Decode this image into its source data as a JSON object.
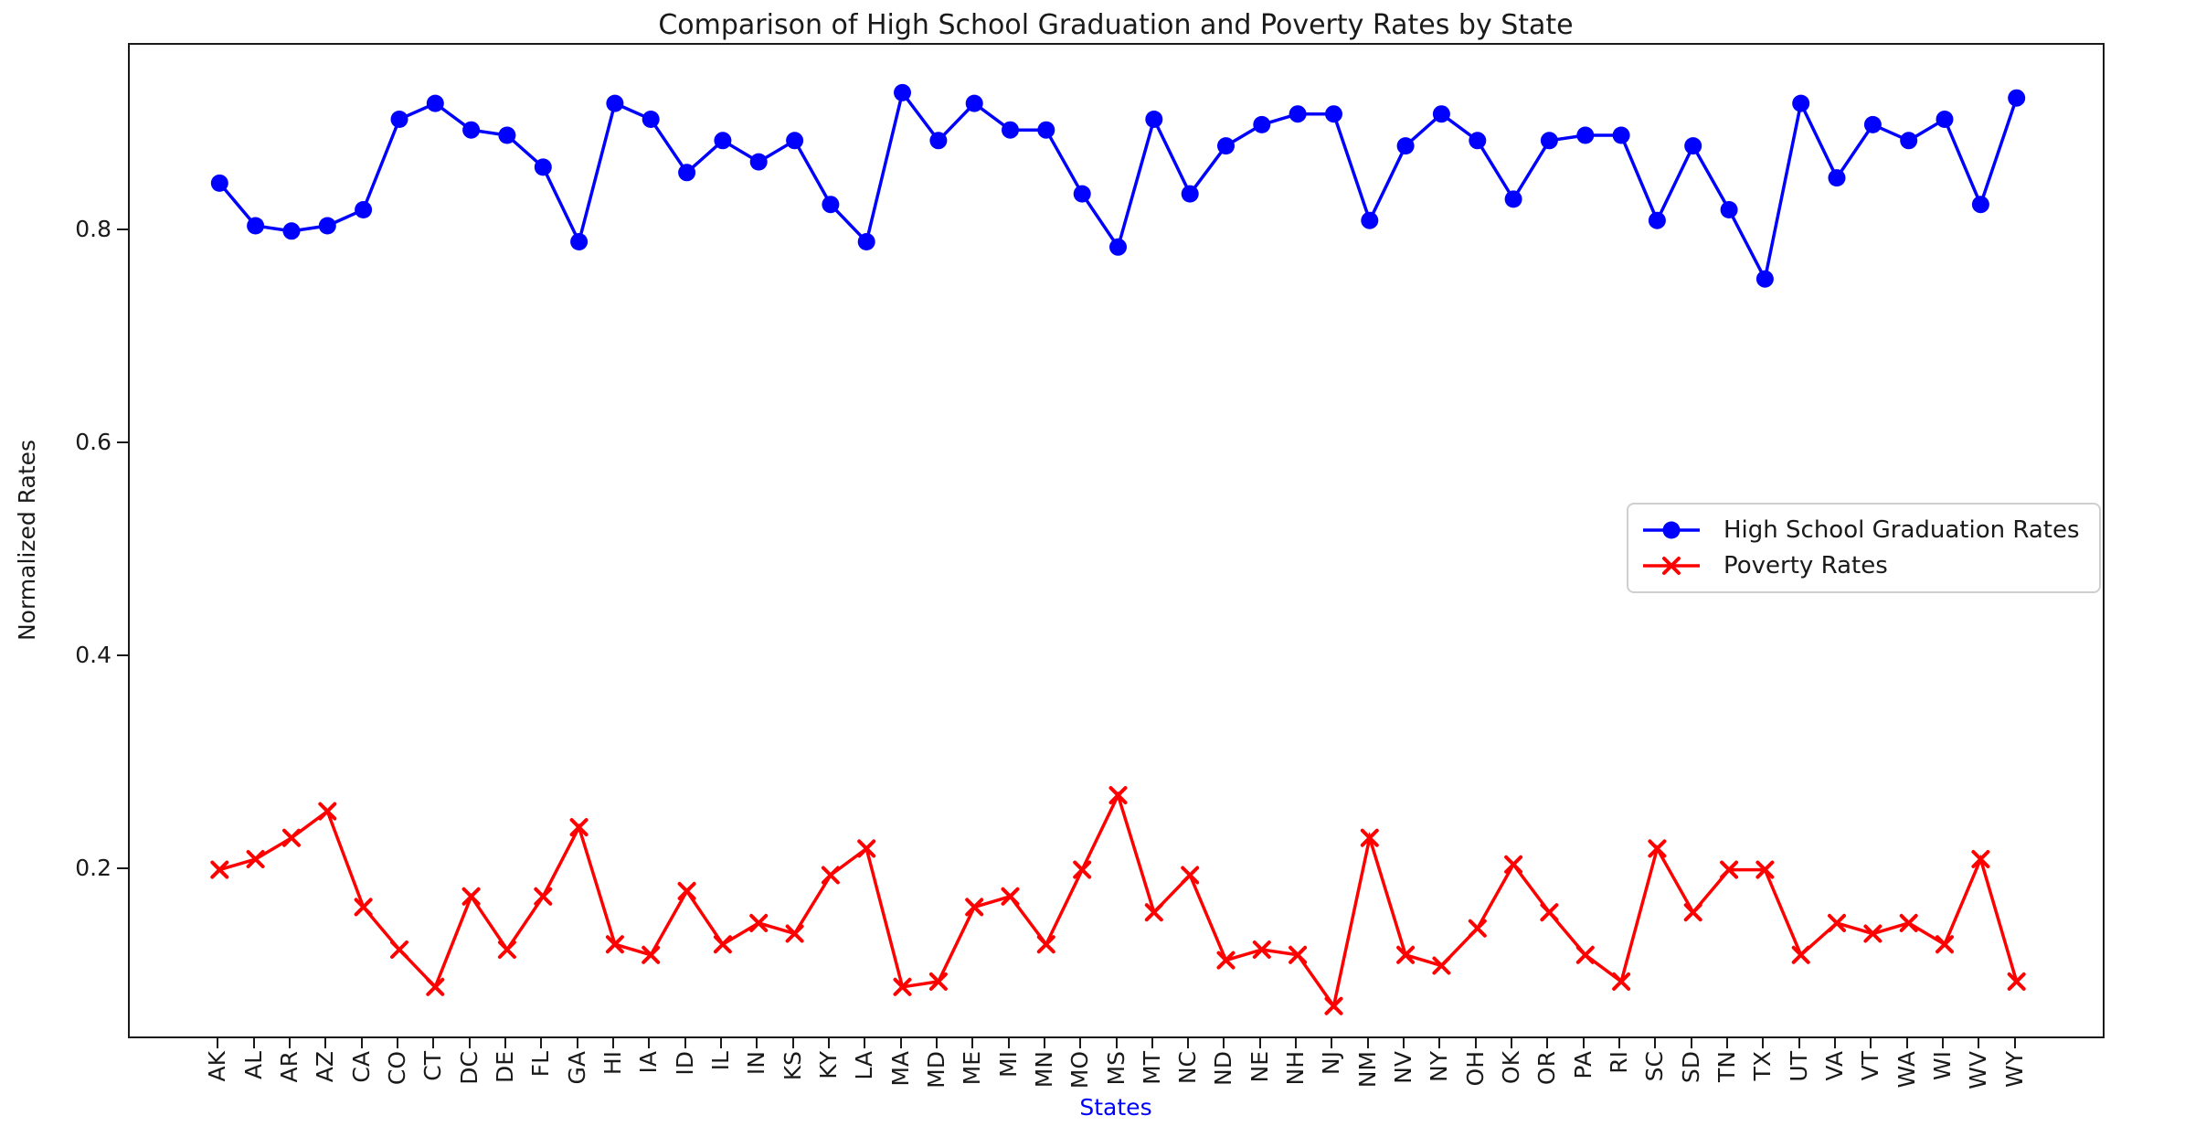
{
  "chart_data": {
    "type": "line",
    "title": "Comparison of High School Graduation and Poverty Rates by State",
    "xlabel": "States",
    "ylabel": "Normalized Rates",
    "xlabel_color": "#0000ff",
    "grid": false,
    "legend_position": "center right",
    "yticks": [
      0.2,
      0.4,
      0.6,
      0.8
    ],
    "ylim": [
      0.04,
      0.975
    ],
    "categories": [
      "AK",
      "AL",
      "AR",
      "AZ",
      "CA",
      "CO",
      "CT",
      "DC",
      "DE",
      "FL",
      "GA",
      "HI",
      "IA",
      "ID",
      "IL",
      "IN",
      "KS",
      "KY",
      "LA",
      "MA",
      "MD",
      "ME",
      "MI",
      "MN",
      "MO",
      "MS",
      "MT",
      "NC",
      "ND",
      "NE",
      "NH",
      "NJ",
      "NM",
      "NV",
      "NY",
      "OH",
      "OK",
      "OR",
      "PA",
      "RI",
      "SC",
      "SD",
      "TN",
      "TX",
      "UT",
      "VA",
      "VT",
      "WA",
      "WI",
      "WV",
      "WY"
    ],
    "series": [
      {
        "name": "High School Graduation Rates",
        "color": "#0000ff",
        "marker": "circle",
        "values": [
          0.845,
          0.805,
          0.8,
          0.805,
          0.82,
          0.905,
          0.92,
          0.895,
          0.89,
          0.86,
          0.79,
          0.92,
          0.905,
          0.855,
          0.885,
          0.865,
          0.885,
          0.825,
          0.79,
          0.93,
          0.885,
          0.92,
          0.895,
          0.895,
          0.835,
          0.785,
          0.905,
          0.835,
          0.88,
          0.9,
          0.91,
          0.91,
          0.81,
          0.88,
          0.91,
          0.885,
          0.83,
          0.885,
          0.89,
          0.89,
          0.81,
          0.88,
          0.82,
          0.755,
          0.92,
          0.85,
          0.9,
          0.885,
          0.905,
          0.825,
          0.925
        ]
      },
      {
        "name": "Poverty Rates",
        "color": "#ff0000",
        "marker": "x",
        "values": [
          0.2,
          0.21,
          0.23,
          0.255,
          0.165,
          0.125,
          0.09,
          0.175,
          0.125,
          0.175,
          0.24,
          0.13,
          0.12,
          0.18,
          0.13,
          0.15,
          0.14,
          0.195,
          0.22,
          0.09,
          0.095,
          0.165,
          0.175,
          0.13,
          0.2,
          0.27,
          0.16,
          0.195,
          0.115,
          0.125,
          0.12,
          0.072,
          0.23,
          0.12,
          0.11,
          0.145,
          0.205,
          0.16,
          0.12,
          0.095,
          0.22,
          0.16,
          0.2,
          0.2,
          0.12,
          0.15,
          0.14,
          0.15,
          0.13,
          0.21,
          0.095
        ]
      }
    ]
  }
}
